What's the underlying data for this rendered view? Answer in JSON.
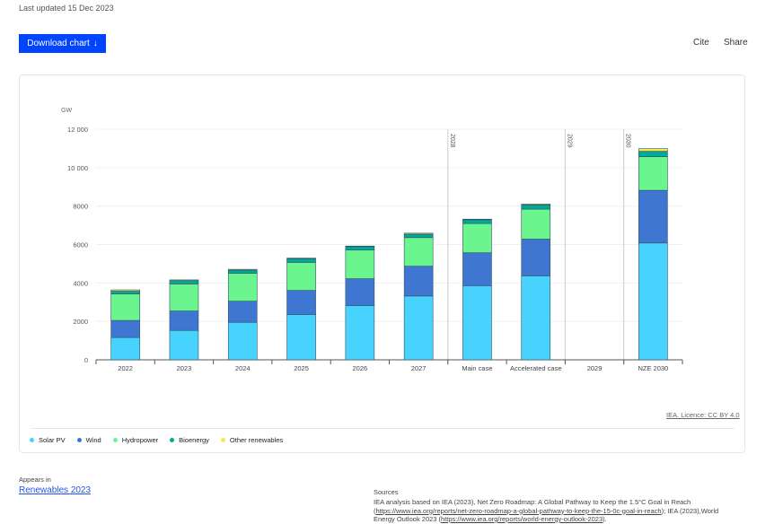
{
  "header": {
    "last_updated": "Last updated 15 Dec 2023",
    "download_label": "Download chart",
    "download_icon": "arrow-down-icon",
    "cite_label": "Cite",
    "share_label": "Share"
  },
  "chart_data": {
    "type": "bar",
    "stacked": true,
    "ylabel": "GW",
    "ylim": [
      0,
      12000
    ],
    "yticks": [
      "0",
      "2000",
      "4000",
      "6000",
      "8000",
      "10 000",
      "12 000"
    ],
    "yticks_values": [
      0,
      2000,
      4000,
      6000,
      8000,
      10000,
      12000
    ],
    "grid": true,
    "categories": [
      "2022",
      "2023",
      "2024",
      "2025",
      "2026",
      "2027",
      "Main case",
      "Accelerated case",
      "2029",
      "NZE 2030"
    ],
    "period_markers": [
      {
        "label": "2028",
        "before": "Main case"
      },
      {
        "label": "2029",
        "before": "2029"
      },
      {
        "label": "2030",
        "before": "NZE 2030"
      }
    ],
    "series": [
      {
        "name": "Solar PV",
        "color": "#48d3ff",
        "values": [
          1160,
          1530,
          1950,
          2360,
          2820,
          3320,
          3860,
          4370,
          null,
          6080
        ]
      },
      {
        "name": "Wind",
        "color": "#3e76d1",
        "values": [
          890,
          1010,
          1100,
          1250,
          1400,
          1550,
          1710,
          1910,
          null,
          2740
        ]
      },
      {
        "name": "Hydropower",
        "color": "#6af58e",
        "values": [
          1380,
          1410,
          1450,
          1460,
          1490,
          1490,
          1520,
          1560,
          null,
          1750
        ]
      },
      {
        "name": "Bioenergy",
        "color": "#00a99a",
        "values": [
          140,
          170,
          170,
          190,
          180,
          180,
          200,
          220,
          null,
          280
        ]
      },
      {
        "name": "Other renewables",
        "color": "#f4e94c",
        "values": [
          70,
          40,
          40,
          30,
          30,
          50,
          30,
          50,
          null,
          140
        ]
      }
    ],
    "legend_placement": "bottom-left"
  },
  "licence": "IEA. Licence: CC BY 4.0",
  "footer": {
    "appears_in": "Appears in",
    "report": "Renewables 2023",
    "sources_title": "Sources",
    "src1": "IEA analysis based on IEA (2023), Net Zero Roadmap: A Global Pathway to Keep the 1.5°C Goal in Reach (",
    "link1": "https://www.iea.org/reports/net-zero-roadmap-a-global-pathway-to-keep-the-15-0c-goal-in-reach",
    "src2": "); IEA (2023),World Energy Outlook 2023 (",
    "link2": "https://www.iea.org/reports/world-energy-outlook-2023",
    "src3": ")."
  }
}
